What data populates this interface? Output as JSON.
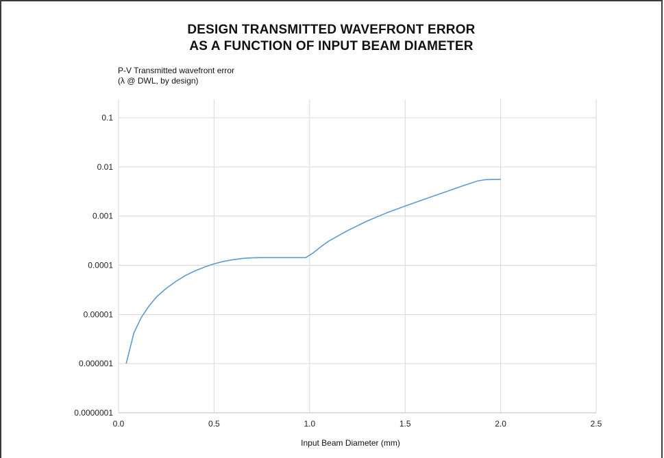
{
  "chart_data": {
    "type": "line",
    "title_line1": "DESIGN TRANSMITTED WAVEFRONT ERROR",
    "title_line2": "AS A FUNCTION OF INPUT BEAM DIAMETER",
    "ylabel_line1": "P-V Transmitted wavefront error",
    "ylabel_line2": "(λ @ DWL, by design)",
    "xlabel": "Input Beam Diameter (mm)",
    "x_scale": "linear",
    "y_scale": "log",
    "xlim": [
      0.0,
      2.5
    ],
    "ylim": [
      1e-07,
      0.1
    ],
    "x_ticks": [
      {
        "value": 0.0,
        "label": "0.0"
      },
      {
        "value": 0.5,
        "label": "0.5"
      },
      {
        "value": 1.0,
        "label": "1.0"
      },
      {
        "value": 1.5,
        "label": "1.5"
      },
      {
        "value": 2.0,
        "label": "2.0"
      },
      {
        "value": 2.5,
        "label": "2.5"
      }
    ],
    "y_ticks": [
      {
        "value": 1e-07,
        "label": "0.0000001"
      },
      {
        "value": 1e-06,
        "label": "0.000001"
      },
      {
        "value": 1e-05,
        "label": "0.00001"
      },
      {
        "value": 0.0001,
        "label": "0.0001"
      },
      {
        "value": 0.001,
        "label": "0.001"
      },
      {
        "value": 0.01,
        "label": "0.01"
      },
      {
        "value": 0.1,
        "label": "0.1"
      }
    ],
    "grid": true,
    "series": [
      {
        "color": "#5b9bd5",
        "x": [
          0.04,
          0.08,
          0.12,
          0.16,
          0.2,
          0.25,
          0.3,
          0.35,
          0.4,
          0.45,
          0.5,
          0.55,
          0.6,
          0.65,
          0.7,
          0.75,
          0.8,
          0.85,
          0.9,
          0.95,
          0.98,
          1.02,
          1.06,
          1.1,
          1.2,
          1.3,
          1.4,
          1.5,
          1.6,
          1.7,
          1.8,
          1.88,
          1.92,
          2.0
        ],
        "y": [
          1e-06,
          4.2e-06,
          8.8e-06,
          1.5e-05,
          2.3e-05,
          3.4e-05,
          4.7e-05,
          6.2e-05,
          7.7e-05,
          9.2e-05,
          0.000107,
          0.00012,
          0.00013,
          0.000138,
          0.000142,
          0.000143,
          0.000143,
          0.000143,
          0.000143,
          0.000143,
          0.000143,
          0.00018,
          0.00024,
          0.00031,
          0.00051,
          0.00079,
          0.00115,
          0.0016,
          0.0022,
          0.003,
          0.0041,
          0.0052,
          0.0055,
          0.0056
        ]
      }
    ]
  }
}
